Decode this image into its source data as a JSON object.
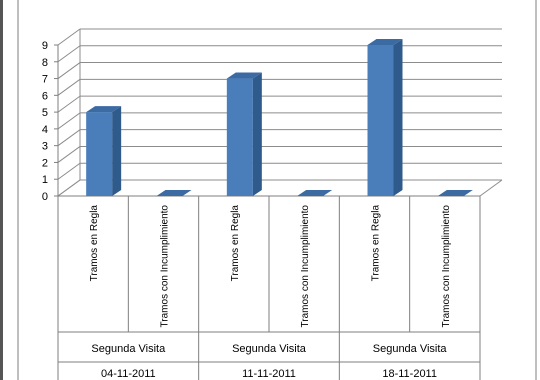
{
  "chart_data": {
    "type": "bar",
    "title": "",
    "xlabel": "",
    "ylabel": "",
    "ylim": [
      0,
      9
    ],
    "yticks": [
      0,
      1,
      2,
      3,
      4,
      5,
      6,
      7,
      8,
      9
    ],
    "grid": true,
    "legend": "none",
    "bar_color": "#4a7ebb",
    "categories": [
      {
        "label": "Tramos en Regla",
        "group": "Segunda Visita",
        "date": "04-11-2011"
      },
      {
        "label": "Tramos con Incumplimiento",
        "group": "Segunda Visita",
        "date": "04-11-2011"
      },
      {
        "label": "Tramos en Regla",
        "group": "Segunda Visita",
        "date": "11-11-2011"
      },
      {
        "label": "Tramos con Incumplimiento",
        "group": "Segunda Visita",
        "date": "11-11-2011"
      },
      {
        "label": "Tramos en Regla",
        "group": "Segunda Visita",
        "date": "18-11-2011"
      },
      {
        "label": "Tramos con Incumplimiento",
        "group": "Segunda Visita",
        "date": "18-11-2011"
      }
    ],
    "values": [
      5,
      0,
      7,
      0,
      9,
      0
    ],
    "groups": [
      {
        "label": "Segunda Visita",
        "date": "04-11-2011"
      },
      {
        "label": "Segunda Visita",
        "date": "11-11-2011"
      },
      {
        "label": "Segunda Visita",
        "date": "18-11-2011"
      }
    ]
  }
}
